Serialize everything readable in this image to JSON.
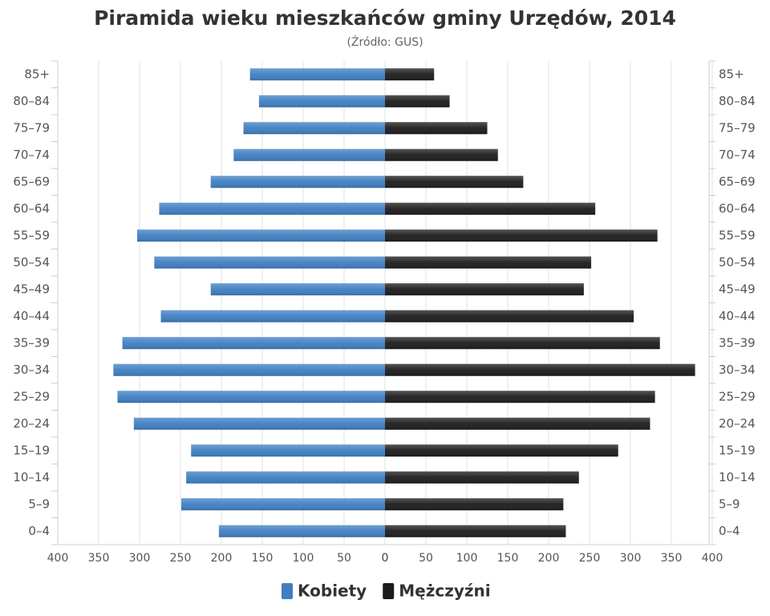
{
  "chart_data": {
    "type": "pyramid",
    "title": "Piramida wieku mieszkańców gminy Urzędów, 2014",
    "subtitle": "(Źródło: GUS)",
    "categories": [
      "85+",
      "80–84",
      "75–79",
      "70–74",
      "65–69",
      "60–64",
      "55–59",
      "50–54",
      "45–49",
      "40–44",
      "35–39",
      "30–34",
      "25–29",
      "20–24",
      "15–19",
      "10–14",
      "5–9",
      "0–4"
    ],
    "series": [
      {
        "name": "Kobiety",
        "color": "#3f7fc2",
        "side": "left",
        "values": [
          165,
          154,
          173,
          185,
          213,
          276,
          303,
          282,
          213,
          274,
          321,
          332,
          327,
          307,
          237,
          243,
          249,
          203
        ]
      },
      {
        "name": "Mężczyźni",
        "color": "#1c1c1c",
        "side": "right",
        "values": [
          60,
          79,
          125,
          138,
          169,
          257,
          333,
          252,
          243,
          304,
          336,
          379,
          330,
          324,
          285,
          237,
          218,
          221
        ]
      }
    ],
    "xlim": [
      0,
      400
    ],
    "xticks": [
      0,
      50,
      100,
      150,
      200,
      250,
      300,
      350,
      400
    ],
    "grid": true
  }
}
